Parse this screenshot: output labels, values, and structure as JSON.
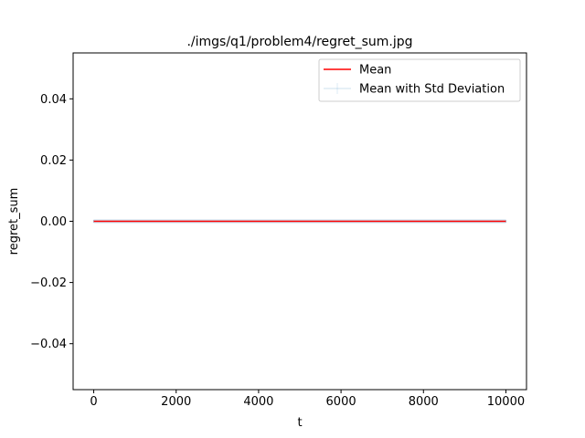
{
  "chart_data": {
    "type": "line",
    "title": "./imgs/q1/problem4/regret_sum.jpg",
    "xlabel": "t",
    "ylabel": "regret_sum",
    "xlim": [
      -500,
      10500
    ],
    "ylim": [
      -0.055,
      0.055
    ],
    "x_ticks": [
      0,
      2000,
      4000,
      6000,
      8000,
      10000
    ],
    "x_tick_labels": [
      "0",
      "2000",
      "4000",
      "6000",
      "8000",
      "10000"
    ],
    "y_ticks": [
      -0.04,
      -0.02,
      0.0,
      0.02,
      0.04
    ],
    "y_tick_labels": [
      "−0.04",
      "−0.02",
      "0.00",
      "0.02",
      "0.04"
    ],
    "grid": false,
    "legend_position": "top-right",
    "series": [
      {
        "name": "Mean",
        "color": "#ff0000",
        "style": "line",
        "x": [
          0,
          10000
        ],
        "y": [
          0,
          0
        ]
      },
      {
        "name": "Mean with Std Deviation",
        "color": "#1f77b4",
        "style": "errorbar",
        "x": [
          0,
          10000
        ],
        "y": [
          0,
          0
        ],
        "std": [
          0,
          0
        ]
      }
    ]
  }
}
